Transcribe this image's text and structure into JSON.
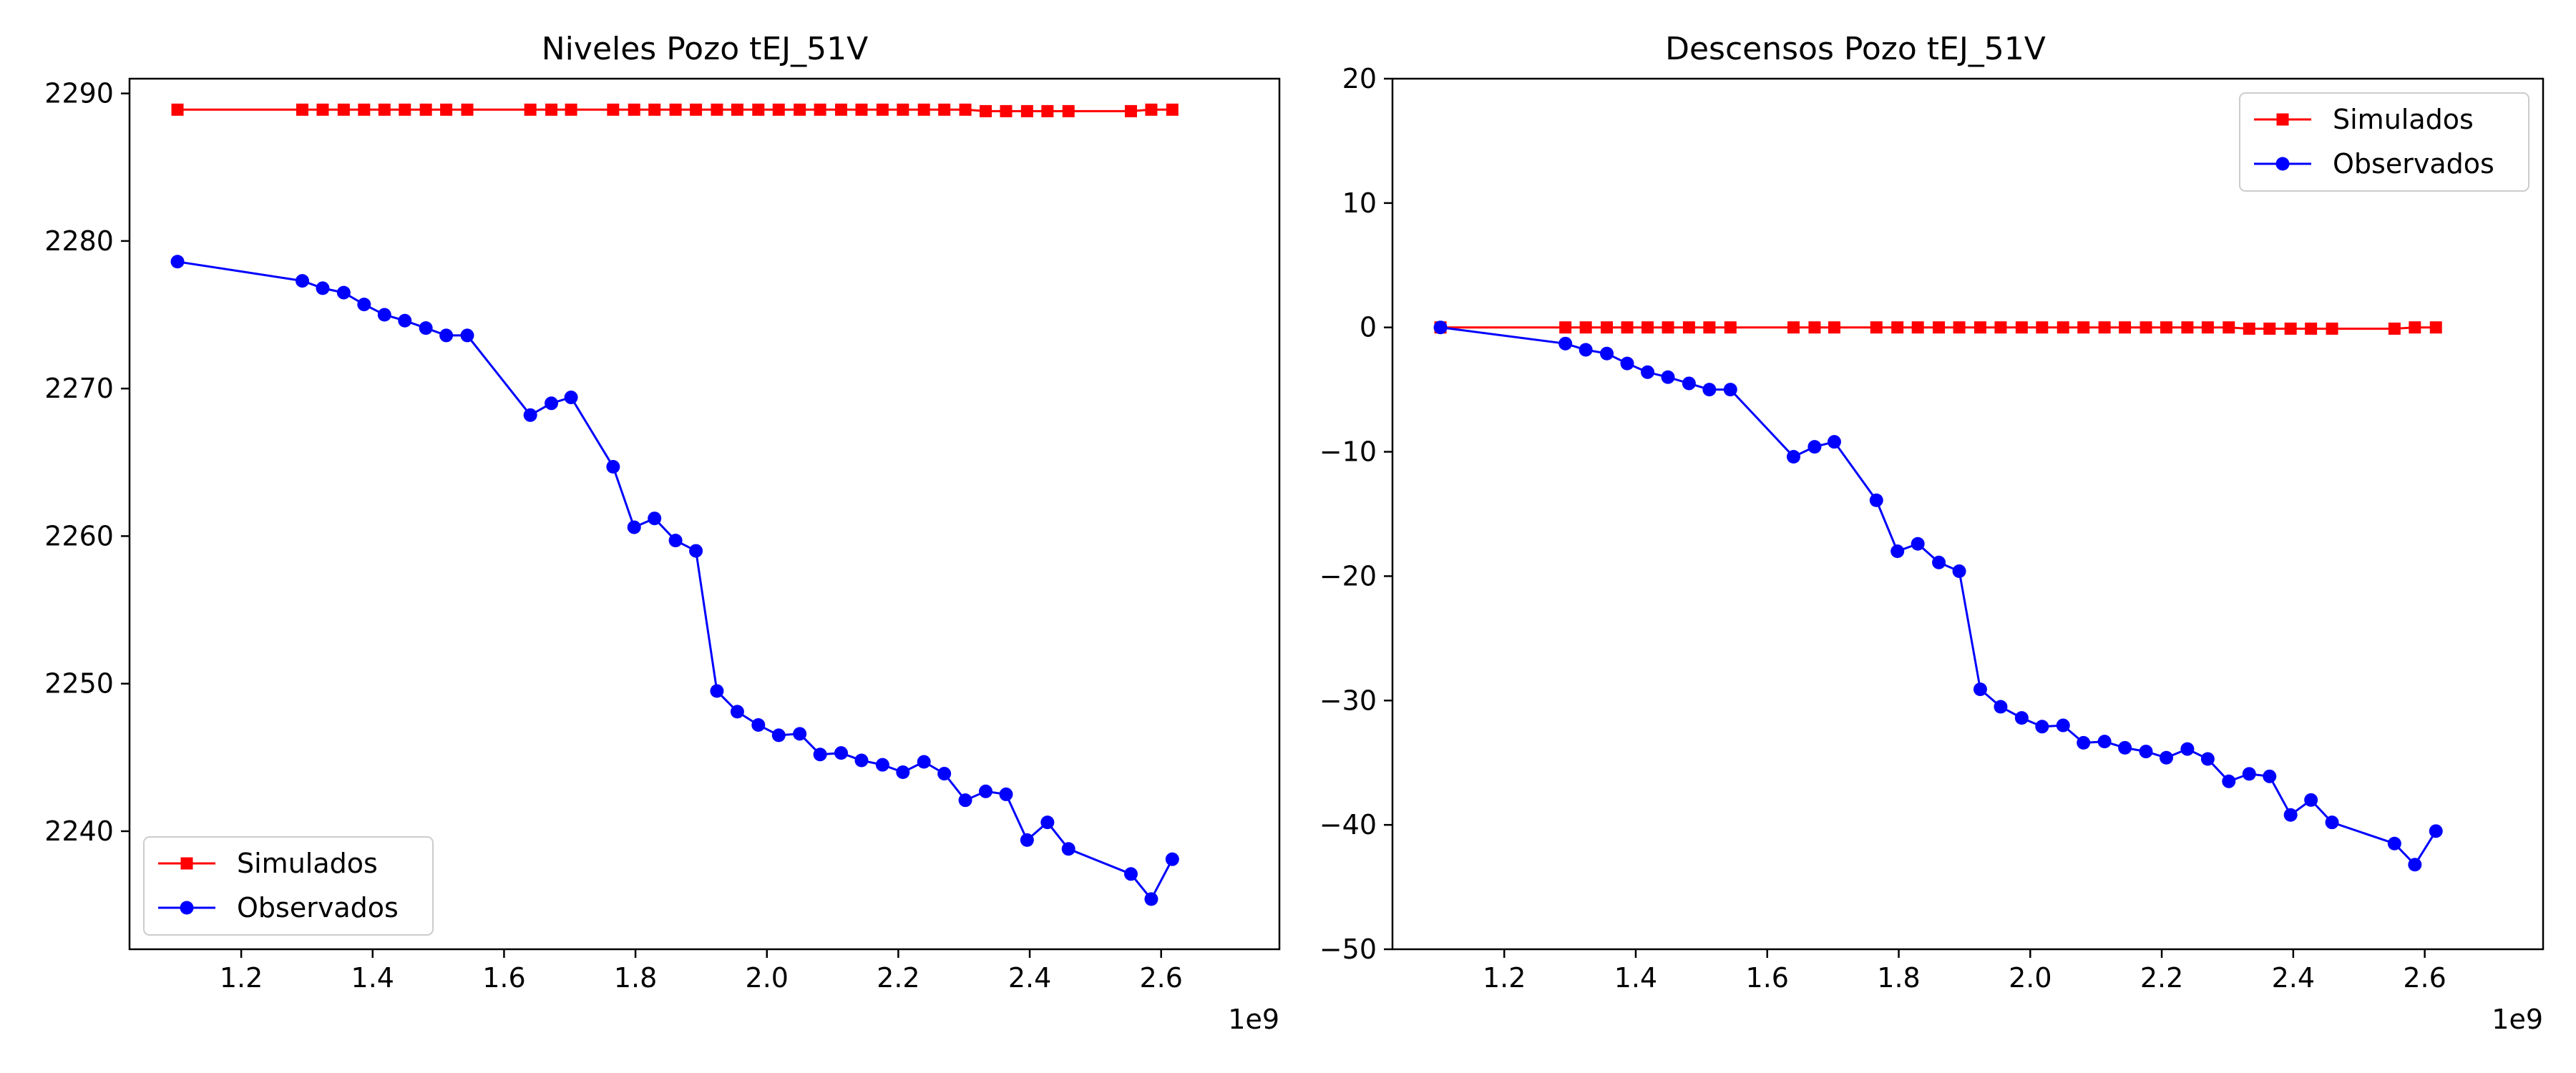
{
  "chart_data": [
    {
      "type": "line",
      "title": "Niveles Pozo tEJ_51V",
      "xlabel": "",
      "ylabel": "",
      "x_offset_label": "1e9",
      "xlim": [
        1.03,
        2.78
      ],
      "ylim": [
        2232,
        2291
      ],
      "xticks": [
        1.2,
        1.4,
        1.6,
        1.8,
        2.0,
        2.2,
        2.4,
        2.6
      ],
      "xtick_labels": [
        "1.2",
        "1.4",
        "1.6",
        "1.8",
        "2.0",
        "2.2",
        "2.4",
        "2.6"
      ],
      "yticks": [
        2240,
        2250,
        2260,
        2270,
        2280,
        2290
      ],
      "ytick_labels": [
        "2240",
        "2250",
        "2260",
        "2270",
        "2280",
        "2290"
      ],
      "grid": false,
      "legend_position": "lower-left",
      "series": [
        {
          "name": "Simulados",
          "color": "#ff0000",
          "marker": "square",
          "x": [
            1.103,
            1.293,
            1.324,
            1.356,
            1.387,
            1.418,
            1.449,
            1.481,
            1.512,
            1.544,
            1.64,
            1.672,
            1.702,
            1.766,
            1.798,
            1.829,
            1.861,
            1.892,
            1.924,
            1.955,
            1.987,
            2.018,
            2.05,
            2.081,
            2.113,
            2.144,
            2.176,
            2.207,
            2.239,
            2.27,
            2.302,
            2.333,
            2.364,
            2.396,
            2.427,
            2.459,
            2.554,
            2.585,
            2.617
          ],
          "y": [
            2288.9,
            2288.9,
            2288.9,
            2288.9,
            2288.9,
            2288.9,
            2288.9,
            2288.9,
            2288.9,
            2288.9,
            2288.9,
            2288.9,
            2288.9,
            2288.9,
            2288.9,
            2288.9,
            2288.9,
            2288.9,
            2288.9,
            2288.9,
            2288.9,
            2288.9,
            2288.9,
            2288.9,
            2288.9,
            2288.9,
            2288.9,
            2288.9,
            2288.9,
            2288.9,
            2288.9,
            2288.8,
            2288.8,
            2288.8,
            2288.8,
            2288.8,
            2288.8,
            2288.9,
            2288.9
          ]
        },
        {
          "name": "Observados",
          "color": "#0000ff",
          "marker": "circle",
          "x": [
            1.103,
            1.293,
            1.324,
            1.356,
            1.387,
            1.418,
            1.449,
            1.481,
            1.512,
            1.544,
            1.64,
            1.672,
            1.702,
            1.766,
            1.798,
            1.829,
            1.861,
            1.892,
            1.924,
            1.955,
            1.987,
            2.018,
            2.05,
            2.081,
            2.113,
            2.144,
            2.176,
            2.207,
            2.239,
            2.27,
            2.302,
            2.333,
            2.364,
            2.396,
            2.427,
            2.459,
            2.554,
            2.585,
            2.617
          ],
          "y": [
            2278.6,
            2277.3,
            2276.8,
            2276.5,
            2275.7,
            2275.0,
            2274.6,
            2274.1,
            2273.6,
            2273.6,
            2268.2,
            2269.0,
            2269.4,
            2264.7,
            2260.6,
            2261.2,
            2259.7,
            2259.0,
            2249.5,
            2248.1,
            2247.2,
            2246.5,
            2246.6,
            2245.2,
            2245.3,
            2244.8,
            2244.5,
            2244.0,
            2244.7,
            2243.9,
            2242.1,
            2242.7,
            2242.5,
            2239.4,
            2240.6,
            2238.8,
            2237.1,
            2235.4,
            2238.1
          ]
        }
      ]
    },
    {
      "type": "line",
      "title": "Descensos Pozo tEJ_51V",
      "xlabel": "",
      "ylabel": "",
      "x_offset_label": "1e9",
      "xlim": [
        1.03,
        2.78
      ],
      "ylim": [
        -50,
        20
      ],
      "xticks": [
        1.2,
        1.4,
        1.6,
        1.8,
        2.0,
        2.2,
        2.4,
        2.6
      ],
      "xtick_labels": [
        "1.2",
        "1.4",
        "1.6",
        "1.8",
        "2.0",
        "2.2",
        "2.4",
        "2.6"
      ],
      "yticks": [
        -50,
        -40,
        -30,
        -20,
        -10,
        0,
        10,
        20
      ],
      "ytick_labels": [
        "−50",
        "−40",
        "−30",
        "−20",
        "−10",
        "0",
        "10",
        "20"
      ],
      "grid": false,
      "legend_position": "upper-right",
      "series": [
        {
          "name": "Simulados",
          "color": "#ff0000",
          "marker": "square",
          "x": [
            1.103,
            1.293,
            1.324,
            1.356,
            1.387,
            1.418,
            1.449,
            1.481,
            1.512,
            1.544,
            1.64,
            1.672,
            1.702,
            1.766,
            1.798,
            1.829,
            1.861,
            1.892,
            1.924,
            1.955,
            1.987,
            2.018,
            2.05,
            2.081,
            2.113,
            2.144,
            2.176,
            2.207,
            2.239,
            2.27,
            2.302,
            2.333,
            2.364,
            2.396,
            2.427,
            2.459,
            2.554,
            2.585,
            2.617
          ],
          "y": [
            0.0,
            0.0,
            0.0,
            0.0,
            0.0,
            0.0,
            0.0,
            0.0,
            0.0,
            0.0,
            0.0,
            0.0,
            0.0,
            0.0,
            0.0,
            0.0,
            0.0,
            0.0,
            0.0,
            0.0,
            0.0,
            0.0,
            0.0,
            0.0,
            0.0,
            0.0,
            0.0,
            0.0,
            0.0,
            0.0,
            0.0,
            -0.1,
            -0.1,
            -0.1,
            -0.1,
            -0.1,
            -0.1,
            0.0,
            0.0
          ]
        },
        {
          "name": "Observados",
          "color": "#0000ff",
          "marker": "circle",
          "x": [
            1.103,
            1.293,
            1.324,
            1.356,
            1.387,
            1.418,
            1.449,
            1.481,
            1.512,
            1.544,
            1.64,
            1.672,
            1.702,
            1.766,
            1.798,
            1.829,
            1.861,
            1.892,
            1.924,
            1.955,
            1.987,
            2.018,
            2.05,
            2.081,
            2.113,
            2.144,
            2.176,
            2.207,
            2.239,
            2.27,
            2.302,
            2.333,
            2.364,
            2.396,
            2.427,
            2.459,
            2.554,
            2.585,
            2.617
          ],
          "y": [
            0.0,
            -1.3,
            -1.8,
            -2.1,
            -2.9,
            -3.6,
            -4.0,
            -4.5,
            -5.0,
            -5.0,
            -10.4,
            -9.6,
            -9.2,
            -13.9,
            -18.0,
            -17.4,
            -18.9,
            -19.6,
            -29.1,
            -30.5,
            -31.4,
            -32.1,
            -32.0,
            -33.4,
            -33.3,
            -33.8,
            -34.1,
            -34.6,
            -33.9,
            -34.7,
            -36.5,
            -35.9,
            -36.1,
            -39.2,
            -38.0,
            -39.8,
            -41.5,
            -43.2,
            -40.5
          ]
        }
      ]
    }
  ]
}
